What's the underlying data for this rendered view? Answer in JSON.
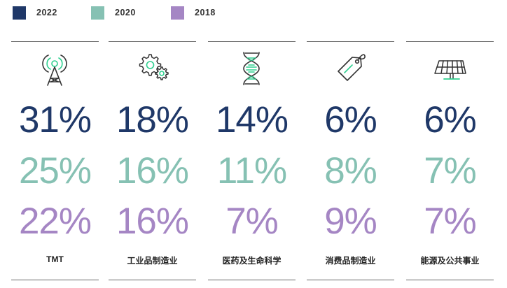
{
  "colors": {
    "s2022": "#1f3868",
    "s2020": "#86c1b3",
    "s2018": "#a586c4",
    "icon_stroke": "#333333",
    "icon_accent": "#2ecf8f"
  },
  "legend": [
    {
      "label": "2022",
      "color": "#1f3868"
    },
    {
      "label": "2020",
      "color": "#86c1b3"
    },
    {
      "label": "2018",
      "color": "#a586c4"
    }
  ],
  "chart_data": {
    "type": "table",
    "series": [
      {
        "name": "2022",
        "values": [
          31,
          18,
          14,
          6,
          6
        ],
        "labels": [
          "31%",
          "18%",
          "14%",
          "6%",
          "6%"
        ]
      },
      {
        "name": "2020",
        "values": [
          25,
          16,
          11,
          8,
          7
        ],
        "labels": [
          "25%",
          "16%",
          "11%",
          "8%",
          "7%"
        ]
      },
      {
        "name": "2018",
        "values": [
          22,
          16,
          7,
          9,
          7
        ],
        "labels": [
          "22%",
          "16%",
          "7%",
          "9%",
          "7%"
        ]
      }
    ],
    "categories": [
      "TMT",
      "工业品制造业",
      "医药及生命科学",
      "消费品制造业",
      "能源及公共事业"
    ],
    "icons": [
      "broadcast-tower-icon",
      "gears-icon",
      "dna-icon",
      "price-tag-icon",
      "solar-panel-icon"
    ]
  }
}
